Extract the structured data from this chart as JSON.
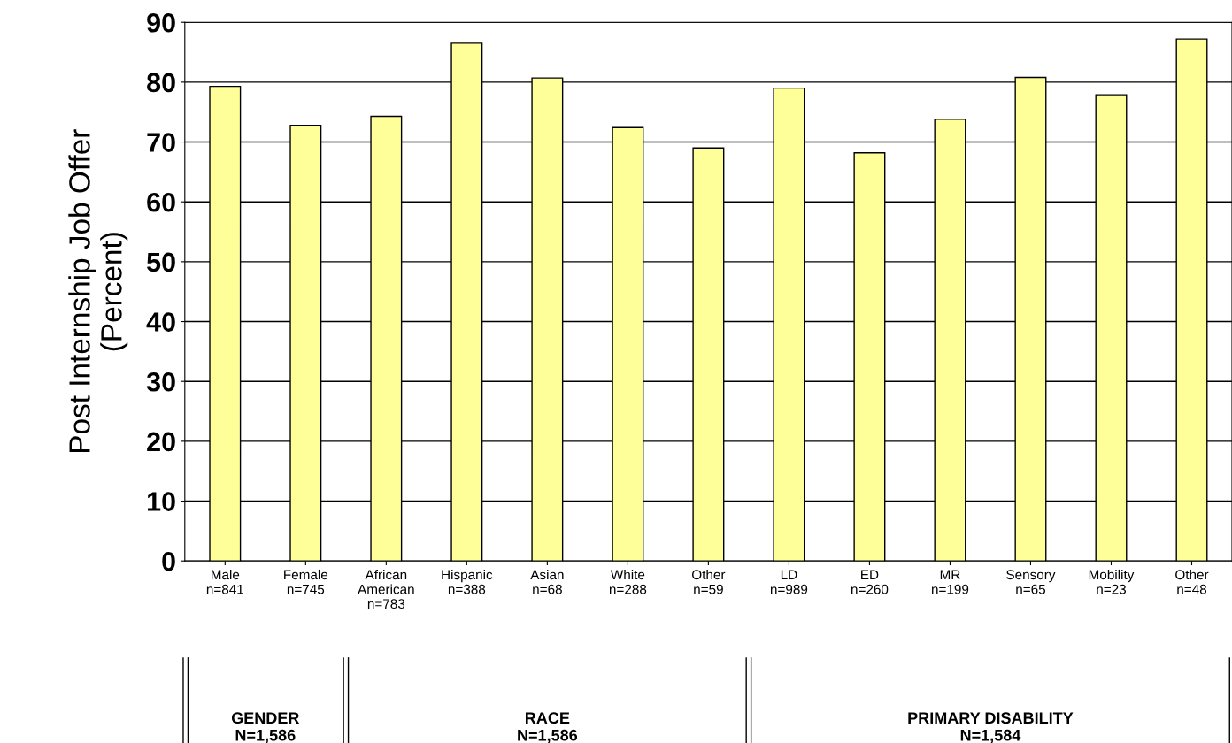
{
  "chart_data": {
    "type": "bar",
    "ylabel": "Post Internship Job Offer\n(Percent)",
    "categories": [
      "Male\nn=841",
      "Female\nn=745",
      "African\nAmerican\nn=783",
      "Hispanic\nn=388",
      "Asian\nn=68",
      "White\nn=288",
      "Other\nn=59",
      "LD\nn=989",
      "ED\nn=260",
      "MR\nn=199",
      "Sensory\nn=65",
      "Mobility\nn=23",
      "Other\nn=48"
    ],
    "values": [
      79.3,
      72.8,
      74.3,
      86.5,
      80.7,
      72.4,
      69,
      79,
      68.2,
      73.8,
      80.8,
      77.9,
      87.2
    ],
    "color": "#ffff99",
    "ylim": [
      0,
      90
    ],
    "yticks": [
      0,
      10,
      20,
      30,
      40,
      50,
      60,
      70,
      80,
      90
    ],
    "grid": "y",
    "annotations": [
      "GENDER\nN=1,586",
      "RACE\nN=1,586",
      "PRIMARY DISABILITY\nN=1,584"
    ]
  }
}
